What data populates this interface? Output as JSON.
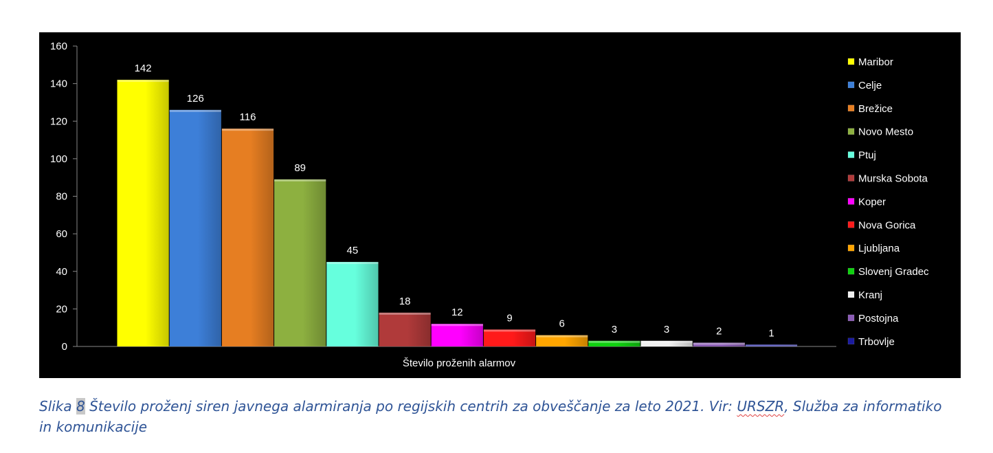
{
  "chart_data": {
    "type": "bar",
    "title": "",
    "xlabel": "Število proženih alarmov",
    "ylabel": "",
    "ylim": [
      0,
      160
    ],
    "yticks": [
      0,
      20,
      40,
      60,
      80,
      100,
      120,
      140,
      160
    ],
    "grid": false,
    "legend_position": "right",
    "categories": [
      "Maribor",
      "Celje",
      "Brežice",
      "Novo Mesto",
      "Ptuj",
      "Murska Sobota",
      "Koper",
      "Nova Gorica",
      "Ljubljana",
      "Slovenj Gradec",
      "Kranj",
      "Postojna",
      "Trbovlje"
    ],
    "values": [
      142,
      126,
      116,
      89,
      45,
      18,
      12,
      9,
      6,
      3,
      3,
      2,
      1
    ],
    "colors": [
      "#FFFF00",
      "#3D7FD8",
      "#E67E22",
      "#8DB040",
      "#66FFDD",
      "#B03A3A",
      "#FF00FF",
      "#FF1A1A",
      "#FFA500",
      "#10D010",
      "#F0F0F0",
      "#8A5BB5",
      "#1A1A9E"
    ]
  },
  "caption": {
    "prefix": "Slika",
    "number": "8",
    "text_before_source": "Število proženj siren javnega alarmiranja po regijskih centrih za obveščanje za leto 2021. Vir:",
    "source_abbr": "URSZR",
    "text_after_source": ", Služba za informatiko in komunikacije"
  }
}
